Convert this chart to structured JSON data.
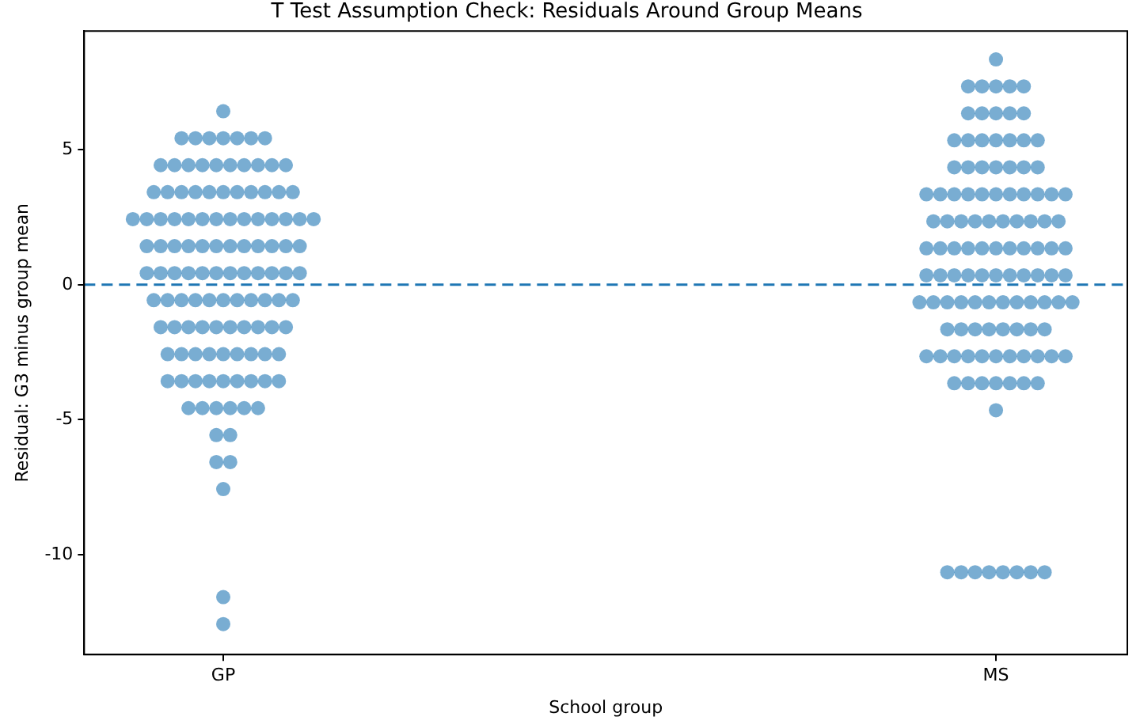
{
  "chart_data": {
    "type": "scatter",
    "title": "T Test Assumption Check: Residuals Around Group Means",
    "xlabel": "School group",
    "ylabel": "Residual: G3 minus group mean",
    "categories": [
      "GP",
      "MS"
    ],
    "ylim": [
      -13.7,
      9.4
    ],
    "yticks": [
      -10,
      -5,
      0,
      5
    ],
    "grid": false,
    "legend": false,
    "marker": "circle",
    "ref_lines": [
      {
        "axis": "y",
        "value": 0,
        "label": null,
        "color": "#1f77b4",
        "line_style": "dashed"
      }
    ],
    "series": [
      {
        "color": "#1f77b4",
        "x": [
          "GP",
          "GP",
          "GP",
          "GP",
          "GP",
          "GP",
          "GP",
          "GP",
          "GP",
          "GP",
          "GP",
          "GP",
          "GP",
          "GP",
          "GP",
          "GP",
          "GP",
          "GP",
          "GP",
          "GP",
          "GP",
          "GP",
          "GP",
          "GP",
          "GP",
          "GP",
          "GP",
          "GP",
          "GP",
          "GP",
          "GP",
          "GP",
          "GP",
          "GP",
          "GP",
          "GP",
          "GP",
          "GP",
          "GP",
          "GP",
          "GP",
          "GP",
          "GP",
          "GP",
          "GP",
          "GP",
          "GP",
          "GP",
          "GP",
          "GP",
          "GP",
          "GP",
          "GP",
          "GP",
          "GP",
          "GP",
          "GP",
          "GP",
          "GP",
          "GP",
          "GP",
          "GP",
          "GP",
          "GP",
          "GP",
          "GP",
          "GP",
          "GP",
          "GP",
          "GP",
          "GP",
          "GP",
          "GP",
          "GP",
          "GP",
          "GP",
          "GP",
          "GP",
          "GP",
          "GP",
          "GP",
          "GP",
          "GP",
          "GP",
          "GP",
          "GP",
          "GP",
          "GP",
          "GP",
          "GP",
          "GP",
          "GP",
          "GP",
          "GP",
          "GP",
          "GP",
          "GP",
          "GP",
          "GP",
          "GP",
          "GP",
          "GP",
          "GP",
          "GP",
          "GP",
          "GP",
          "GP",
          "GP",
          "GP",
          "GP",
          "GP",
          "GP",
          "GP",
          "GP",
          "GP",
          "GP",
          "GP",
          "GP",
          "GP"
        ],
        "values": [
          6.43,
          5.43,
          5.43,
          5.43,
          5.43,
          5.43,
          5.43,
          5.43,
          4.43,
          4.43,
          4.43,
          4.43,
          4.43,
          4.43,
          4.43,
          4.43,
          4.43,
          4.43,
          3.43,
          3.43,
          3.43,
          3.43,
          3.43,
          3.43,
          3.43,
          3.43,
          3.43,
          3.43,
          3.43,
          2.43,
          2.43,
          2.43,
          2.43,
          2.43,
          2.43,
          2.43,
          2.43,
          2.43,
          2.43,
          2.43,
          2.43,
          2.43,
          2.43,
          1.43,
          1.43,
          1.43,
          1.43,
          1.43,
          1.43,
          1.43,
          1.43,
          1.43,
          1.43,
          1.43,
          1.43,
          0.43,
          0.43,
          0.43,
          0.43,
          0.43,
          0.43,
          0.43,
          0.43,
          0.43,
          0.43,
          0.43,
          0.43,
          -0.57,
          -0.57,
          -0.57,
          -0.57,
          -0.57,
          -0.57,
          -0.57,
          -0.57,
          -0.57,
          -0.57,
          -0.57,
          -1.57,
          -1.57,
          -1.57,
          -1.57,
          -1.57,
          -1.57,
          -1.57,
          -1.57,
          -1.57,
          -1.57,
          -2.57,
          -2.57,
          -2.57,
          -2.57,
          -2.57,
          -2.57,
          -2.57,
          -2.57,
          -2.57,
          -3.57,
          -3.57,
          -3.57,
          -3.57,
          -3.57,
          -3.57,
          -3.57,
          -3.57,
          -3.57,
          -4.57,
          -4.57,
          -4.57,
          -4.57,
          -4.57,
          -4.57,
          -5.57,
          -5.57,
          -6.57,
          -6.57,
          -7.57,
          -11.57,
          -12.57
        ]
      },
      {
        "color": "#1f77b4",
        "x": [
          "MS",
          "MS",
          "MS",
          "MS",
          "MS",
          "MS",
          "MS",
          "MS",
          "MS",
          "MS",
          "MS",
          "MS",
          "MS",
          "MS",
          "MS",
          "MS",
          "MS",
          "MS",
          "MS",
          "MS",
          "MS",
          "MS",
          "MS",
          "MS",
          "MS",
          "MS",
          "MS",
          "MS",
          "MS",
          "MS",
          "MS",
          "MS",
          "MS",
          "MS",
          "MS",
          "MS",
          "MS",
          "MS",
          "MS",
          "MS",
          "MS",
          "MS",
          "MS",
          "MS",
          "MS",
          "MS",
          "MS",
          "MS",
          "MS",
          "MS",
          "MS",
          "MS",
          "MS",
          "MS",
          "MS",
          "MS",
          "MS",
          "MS",
          "MS",
          "MS",
          "MS",
          "MS",
          "MS",
          "MS",
          "MS",
          "MS",
          "MS",
          "MS",
          "MS",
          "MS",
          "MS",
          "MS",
          "MS",
          "MS",
          "MS",
          "MS",
          "MS",
          "MS",
          "MS",
          "MS",
          "MS",
          "MS",
          "MS",
          "MS",
          "MS",
          "MS",
          "MS",
          "MS",
          "MS",
          "MS",
          "MS",
          "MS",
          "MS",
          "MS",
          "MS",
          "MS",
          "MS",
          "MS",
          "MS",
          "MS",
          "MS",
          "MS",
          "MS",
          "MS",
          "MS",
          "MS",
          "MS",
          "MS",
          "MS",
          "MS",
          "MS",
          "MS",
          "MS",
          "MS",
          "MS"
        ],
        "values": [
          8.35,
          7.35,
          7.35,
          7.35,
          7.35,
          7.35,
          6.35,
          6.35,
          6.35,
          6.35,
          6.35,
          5.35,
          5.35,
          5.35,
          5.35,
          5.35,
          5.35,
          5.35,
          4.35,
          4.35,
          4.35,
          4.35,
          4.35,
          4.35,
          4.35,
          3.35,
          3.35,
          3.35,
          3.35,
          3.35,
          3.35,
          3.35,
          3.35,
          3.35,
          3.35,
          3.35,
          2.35,
          2.35,
          2.35,
          2.35,
          2.35,
          2.35,
          2.35,
          2.35,
          2.35,
          2.35,
          1.35,
          1.35,
          1.35,
          1.35,
          1.35,
          1.35,
          1.35,
          1.35,
          1.35,
          1.35,
          1.35,
          0.35,
          0.35,
          0.35,
          0.35,
          0.35,
          0.35,
          0.35,
          0.35,
          0.35,
          0.35,
          0.35,
          -0.65,
          -0.65,
          -0.65,
          -0.65,
          -0.65,
          -0.65,
          -0.65,
          -0.65,
          -0.65,
          -0.65,
          -0.65,
          -0.65,
          -1.65,
          -1.65,
          -1.65,
          -1.65,
          -1.65,
          -1.65,
          -1.65,
          -1.65,
          -2.65,
          -2.65,
          -2.65,
          -2.65,
          -2.65,
          -2.65,
          -2.65,
          -2.65,
          -2.65,
          -2.65,
          -2.65,
          -3.65,
          -3.65,
          -3.65,
          -3.65,
          -3.65,
          -3.65,
          -3.65,
          -4.65,
          -10.65,
          -10.65,
          -10.65,
          -10.65,
          -10.65,
          -10.65,
          -10.65,
          -10.65
        ]
      }
    ]
  }
}
